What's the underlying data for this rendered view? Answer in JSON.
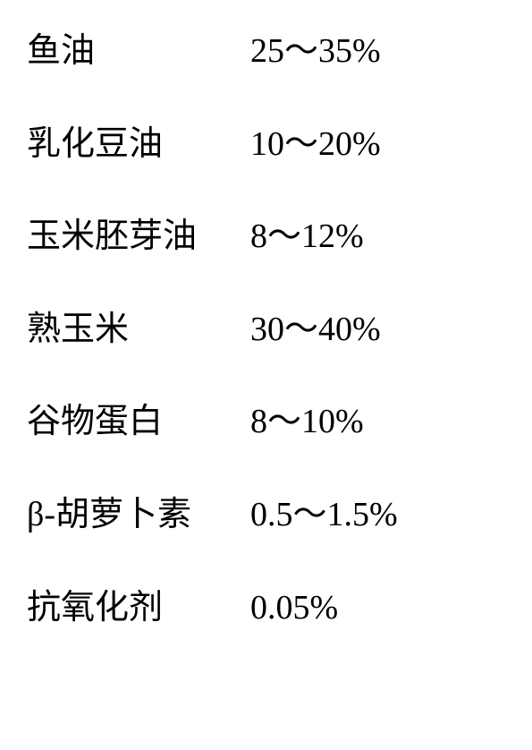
{
  "ingredients": [
    {
      "name": "鱼油",
      "percentage": "25～35%"
    },
    {
      "name": "乳化豆油",
      "percentage": "10～20%"
    },
    {
      "name": "玉米胚芽油",
      "percentage": "8～12%"
    },
    {
      "name": "熟玉米",
      "percentage": "30～40%"
    },
    {
      "name": "谷物蛋白",
      "percentage": "8～10%"
    },
    {
      "name": "β-胡萝卜素",
      "percentage": "0.5～1.5%"
    },
    {
      "name": "抗氧化剂",
      "percentage": "0.05%"
    }
  ],
  "styling": {
    "font_family": "SimSun",
    "font_size": 38,
    "text_color": "#000000",
    "background_color": "#ffffff",
    "row_spacing": 58,
    "label_width": 250
  }
}
